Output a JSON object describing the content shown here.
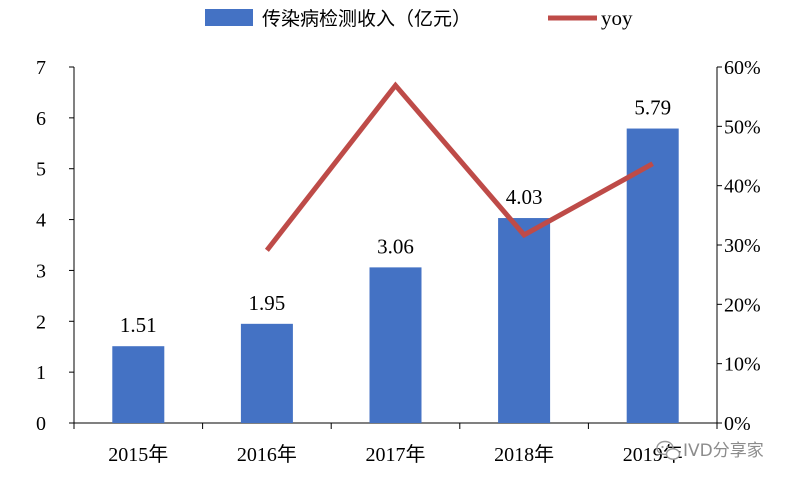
{
  "chart_data": {
    "type": "bar",
    "categories": [
      "2015年",
      "2016年",
      "2017年",
      "2018年",
      "2019年"
    ],
    "series": [
      {
        "name": "传染病检测收入（亿元）",
        "kind": "bar",
        "axis": "left",
        "values": [
          1.51,
          1.95,
          3.06,
          4.03,
          5.79
        ],
        "color": "#4472C4"
      },
      {
        "name": "yoy",
        "kind": "line",
        "axis": "right",
        "values": [
          null,
          0.291,
          0.569,
          0.317,
          0.437
        ],
        "color": "#BE4B48"
      }
    ],
    "data_labels": [
      "1.51",
      "1.95",
      "3.06",
      "4.03",
      "5.79"
    ],
    "left_ticks": [
      "0",
      "1",
      "2",
      "3",
      "4",
      "5",
      "6",
      "7"
    ],
    "right_ticks": [
      "0%",
      "10%",
      "20%",
      "30%",
      "40%",
      "50%",
      "60%"
    ],
    "ylim_left": [
      0,
      7
    ],
    "ylim_right": [
      0,
      0.6
    ],
    "legend_position": "top",
    "grid": false
  },
  "watermark": "IVD分享家",
  "watermark_icon": "wechat-icon"
}
